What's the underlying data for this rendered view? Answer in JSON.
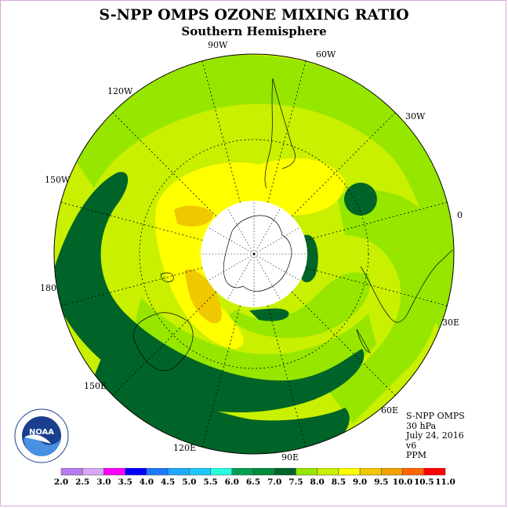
{
  "title": "S-NPP OMPS OZONE MIXING RATIO",
  "subtitle": "Southern Hemisphere",
  "longitude_labels": [
    "90W",
    "60W",
    "30W",
    "0",
    "30E",
    "60E",
    "90E",
    "120E",
    "150E",
    "180",
    "150W",
    "120W"
  ],
  "info": {
    "instrument": "S-NPP OMPS",
    "level": "30 hPa",
    "date": "July 24, 2016",
    "version": "v6",
    "units": "PPM"
  },
  "logo_text": "NOAA",
  "colorbar": {
    "ticks": [
      "2.0",
      "2.5",
      "3.0",
      "3.5",
      "4.0",
      "4.5",
      "5.0",
      "5.5",
      "6.0",
      "6.5",
      "7.0",
      "7.5",
      "8.0",
      "8.5",
      "9.0",
      "9.5",
      "10.0",
      "10.5",
      "11.0"
    ],
    "colors": [
      "#b77cf0",
      "#d9a8f5",
      "#ff00ff",
      "#0000ff",
      "#1e78ff",
      "#1eaaff",
      "#1ec8ff",
      "#28ffe0",
      "#00a050",
      "#008c3c",
      "#006428",
      "#96e600",
      "#c8f000",
      "#ffff00",
      "#f0c800",
      "#f0a000",
      "#ff6400",
      "#ff0000",
      "#8b4513"
    ]
  },
  "map_colors": {
    "dark_green": "#006428",
    "green": "#96e600",
    "yellow_green": "#c8f000",
    "yellow": "#ffff00",
    "orange": "#f0c800",
    "pole_mask": "#ffffff"
  }
}
